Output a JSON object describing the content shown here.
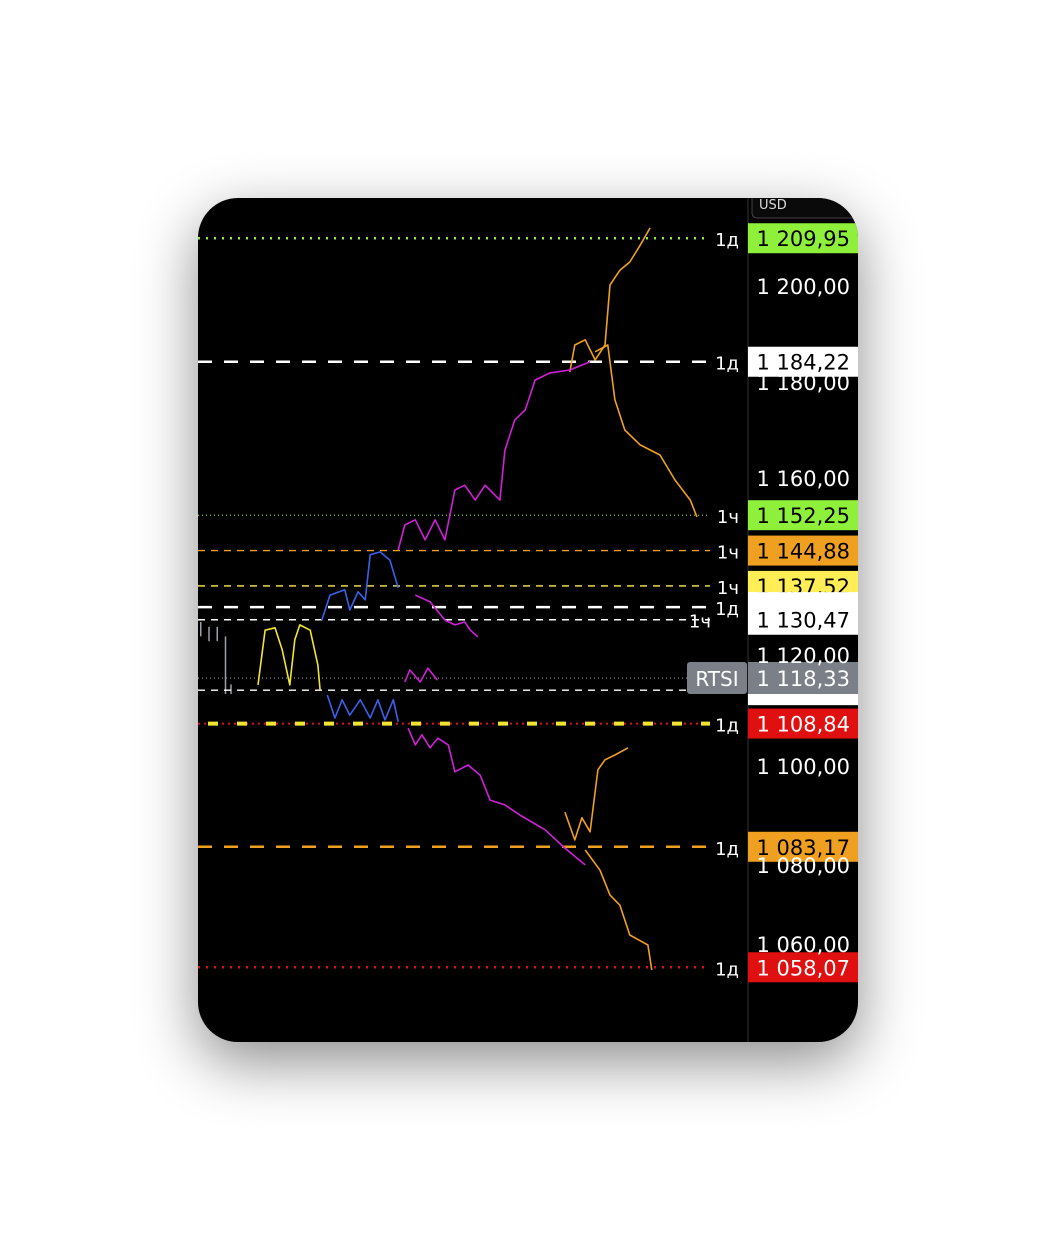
{
  "chart_data": {
    "type": "line",
    "title": "",
    "symbol": "RTSI",
    "currency": "USD",
    "last_price": {
      "value": 1118.33,
      "label": "1 118,33",
      "symbol_badge": "RTSI",
      "color": "#7b7f87"
    },
    "ylim": [
      1035,
      1220
    ],
    "xlim": [
      0,
      100
    ],
    "y_ticks": [
      {
        "value": 1200,
        "label": "1 200,00"
      },
      {
        "value": 1180,
        "label": "1 180,00"
      },
      {
        "value": 1160,
        "label": "1 160,00"
      },
      {
        "value": 1120,
        "label": "1 120,00"
      },
      {
        "value": 1100,
        "label": "1 100,00"
      },
      {
        "value": 1080,
        "label": "1 080,00"
      },
      {
        "value": 1060,
        "label": "1 060,00"
      }
    ],
    "levels": [
      {
        "price": 1209.95,
        "label": "1 209,95",
        "tf": "1д",
        "color": "#8ff03c",
        "style": "dotted-thick",
        "box_bg": "#8ff03c",
        "box_fg": "#000000"
      },
      {
        "price": 1184.22,
        "label": "1 184,22",
        "tf": "1д",
        "color": "#ffffff",
        "style": "dashed-thick",
        "box_bg": "#ffffff",
        "box_fg": "#000000"
      },
      {
        "price": 1152.25,
        "label": "1 152,25",
        "tf": "1ч",
        "color": "#8ff03c",
        "style": "dotted-thin",
        "box_bg": "#8ff03c",
        "box_fg": "#000000"
      },
      {
        "price": 1144.88,
        "label": "1 144,88",
        "tf": "1ч",
        "color": "#f0a020",
        "style": "dashed-thin",
        "box_bg": "#f0a020",
        "box_fg": "#000000"
      },
      {
        "price": 1137.52,
        "label": "1 137,52",
        "tf": "1ч",
        "color": "#ffee55",
        "style": "dashed-thin",
        "box_bg": "#ffee55",
        "box_fg": "#000000"
      },
      {
        "price": 1133.1,
        "label": "",
        "tf": "1д",
        "color": "#ffffff",
        "style": "dashed-thick",
        "box_bg": "#ffffff",
        "box_fg": "#000000"
      },
      {
        "price": 1130.47,
        "label": "1 130,47",
        "tf": "1ч",
        "color": "#ffffff",
        "style": "dashed-thin",
        "box_bg": "#ffffff",
        "box_fg": "#000000"
      },
      {
        "price": 1115.8,
        "label": "",
        "tf": "",
        "color": "#ffffff",
        "style": "dashed-thin",
        "box_bg": "#ffffff",
        "box_fg": "#000000"
      },
      {
        "price": 1108.84,
        "label": "1 108,84",
        "tf": "1д",
        "color": "#e01010",
        "style": "dotted-red-yellow",
        "box_bg": "#e01010",
        "box_fg": "#ffffff"
      },
      {
        "price": 1083.17,
        "label": "1 083,17",
        "tf": "1д",
        "color": "#f0a020",
        "style": "dashed-thick",
        "box_bg": "#f0a020",
        "box_fg": "#000000"
      },
      {
        "price": 1058.07,
        "label": "1 058,07",
        "tf": "1д",
        "color": "#e01010",
        "style": "dotted-thick",
        "box_bg": "#e01010",
        "box_fg": "#ffffff"
      }
    ],
    "series": [
      {
        "color": "#f0a020",
        "points": [
          [
            67.6,
            1182.1
          ],
          [
            68.5,
            1187.7
          ],
          [
            70.4,
            1188.8
          ],
          [
            72.2,
            1184.6
          ],
          [
            74.0,
            1187.7
          ],
          [
            74.9,
            1200.2
          ],
          [
            76.7,
            1203.3
          ],
          [
            78.5,
            1205.0
          ],
          [
            80.4,
            1208.5
          ],
          [
            82.2,
            1212.1
          ]
        ]
      },
      {
        "color": "#f0a020",
        "points": [
          [
            72.2,
            1186.3
          ],
          [
            74.5,
            1187.7
          ],
          [
            75.8,
            1176.3
          ],
          [
            77.6,
            1170.0
          ],
          [
            80.4,
            1166.9
          ],
          [
            84.0,
            1164.8
          ],
          [
            86.7,
            1159.6
          ],
          [
            89.5,
            1155.4
          ],
          [
            90.7,
            1151.9
          ]
        ]
      },
      {
        "color": "#d020d8",
        "points": [
          [
            36.4,
            1145.0
          ],
          [
            37.6,
            1150.2
          ],
          [
            39.5,
            1151.3
          ],
          [
            41.3,
            1147.1
          ],
          [
            43.1,
            1151.3
          ],
          [
            44.9,
            1147.1
          ],
          [
            46.7,
            1157.5
          ],
          [
            48.5,
            1158.5
          ],
          [
            50.4,
            1155.4
          ],
          [
            52.2,
            1158.5
          ],
          [
            54.9,
            1155.4
          ],
          [
            55.8,
            1165.8
          ],
          [
            57.6,
            1172.1
          ],
          [
            59.5,
            1174.2
          ],
          [
            61.3,
            1180.4
          ],
          [
            64.0,
            1181.9
          ],
          [
            67.6,
            1182.5
          ],
          [
            71.3,
            1184.2
          ]
        ]
      },
      {
        "color": "#3a62e8",
        "points": [
          [
            22.5,
            1130.4
          ],
          [
            24.0,
            1135.6
          ],
          [
            26.7,
            1136.7
          ],
          [
            27.6,
            1132.5
          ],
          [
            29.1,
            1136.3
          ],
          [
            30.4,
            1134.6
          ],
          [
            31.3,
            1144.0
          ],
          [
            33.1,
            1144.6
          ],
          [
            34.9,
            1142.9
          ],
          [
            36.4,
            1137.1
          ]
        ]
      },
      {
        "color": "#d020d8",
        "points": [
          [
            39.5,
            1135.6
          ],
          [
            42.2,
            1134.2
          ],
          [
            44.9,
            1130.4
          ],
          [
            46.7,
            1129.4
          ],
          [
            48.5,
            1130.0
          ],
          [
            49.5,
            1128.3
          ],
          [
            50.9,
            1126.9
          ]
        ]
      },
      {
        "color": "#d020d8",
        "points": [
          [
            37.6,
            1117.5
          ],
          [
            38.5,
            1120.0
          ],
          [
            40.4,
            1117.5
          ],
          [
            41.8,
            1120.4
          ],
          [
            43.5,
            1117.9
          ]
        ]
      },
      {
        "color": "#f2e531",
        "points": [
          [
            10.9,
            1116.9
          ],
          [
            12.2,
            1128.3
          ],
          [
            14.0,
            1128.8
          ],
          [
            15.3,
            1124.2
          ],
          [
            16.7,
            1116.9
          ],
          [
            17.6,
            1126.3
          ],
          [
            18.5,
            1129.4
          ],
          [
            20.4,
            1128.3
          ],
          [
            21.8,
            1121.0
          ],
          [
            22.2,
            1115.8
          ]
        ]
      },
      {
        "color": "#3a62e8",
        "points": [
          [
            23.5,
            1114.8
          ],
          [
            24.9,
            1110.0
          ],
          [
            26.2,
            1113.8
          ],
          [
            27.6,
            1110.6
          ],
          [
            29.5,
            1113.8
          ],
          [
            31.3,
            1110.0
          ],
          [
            32.7,
            1113.8
          ],
          [
            34.0,
            1109.6
          ],
          [
            35.5,
            1113.8
          ],
          [
            36.4,
            1109.2
          ]
        ]
      },
      {
        "color": "#d020d8",
        "points": [
          [
            38.2,
            1107.9
          ],
          [
            39.5,
            1104.4
          ],
          [
            40.7,
            1106.5
          ],
          [
            42.2,
            1103.8
          ],
          [
            43.6,
            1105.8
          ],
          [
            45.5,
            1104.4
          ],
          [
            46.7,
            1098.8
          ],
          [
            49.1,
            1100.2
          ],
          [
            51.3,
            1098.1
          ],
          [
            53.1,
            1092.9
          ],
          [
            55.8,
            1091.9
          ],
          [
            58.5,
            1089.8
          ],
          [
            63.1,
            1086.7
          ],
          [
            66.7,
            1082.9
          ],
          [
            70.4,
            1079.4
          ]
        ]
      },
      {
        "color": "#f0a020",
        "points": [
          [
            66.7,
            1090.4
          ],
          [
            68.5,
            1084.6
          ],
          [
            69.8,
            1089.2
          ],
          [
            71.3,
            1086.3
          ],
          [
            72.7,
            1099.2
          ],
          [
            74.0,
            1101.3
          ],
          [
            75.8,
            1102.3
          ],
          [
            78.2,
            1103.8
          ]
        ]
      },
      {
        "color": "#f0a020",
        "points": [
          [
            70.4,
            1082.5
          ],
          [
            73.1,
            1078.3
          ],
          [
            74.9,
            1073.1
          ],
          [
            76.7,
            1071.0
          ],
          [
            78.5,
            1064.8
          ],
          [
            81.8,
            1062.7
          ],
          [
            82.5,
            1057.5
          ]
        ]
      }
    ],
    "price_bars": [
      [
        0.5,
        1130,
        1127
      ],
      [
        2,
        1129,
        1126
      ],
      [
        3.5,
        1129,
        1126
      ],
      [
        5,
        1127,
        1115
      ],
      [
        6,
        1117,
        1115
      ]
    ],
    "grid": false,
    "legend": "none"
  }
}
